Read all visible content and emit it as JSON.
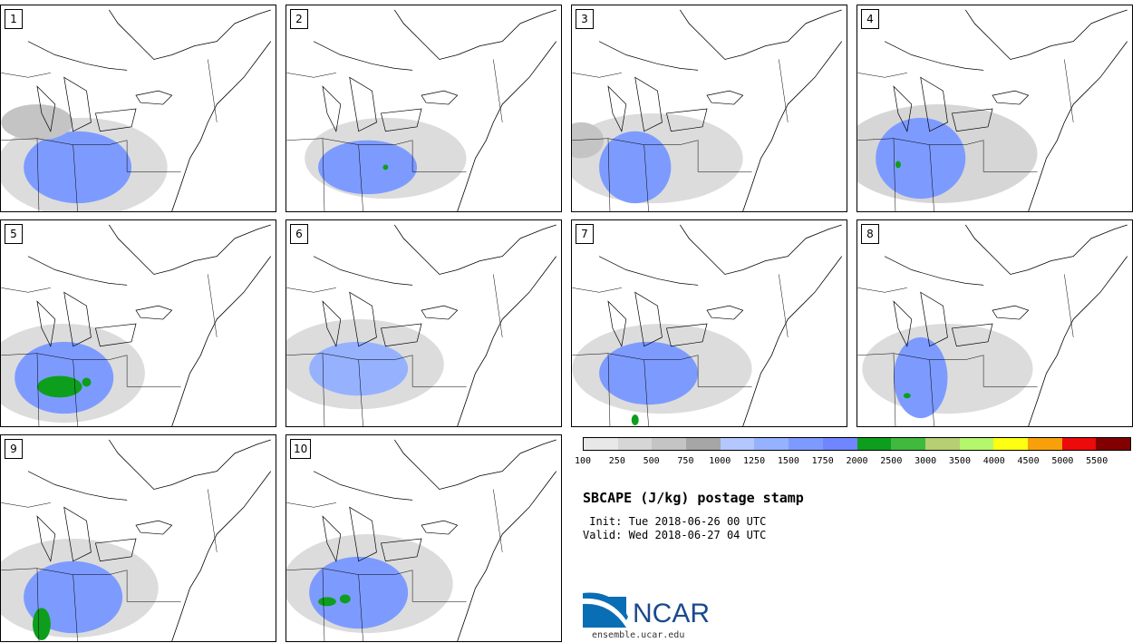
{
  "panels": [
    {
      "label": "1"
    },
    {
      "label": "2"
    },
    {
      "label": "3"
    },
    {
      "label": "4"
    },
    {
      "label": "5"
    },
    {
      "label": "6"
    },
    {
      "label": "7"
    },
    {
      "label": "8"
    },
    {
      "label": "9"
    },
    {
      "label": "10"
    }
  ],
  "legend": {
    "colors": [
      "#e8e8e8",
      "#d6d6d6",
      "#c4c4c4",
      "#a6a6a6",
      "#b4c8ff",
      "#96b2ff",
      "#7d9bff",
      "#6f86ff",
      "#0e9e1e",
      "#3fba3f",
      "#b6cf72",
      "#b4f66c",
      "#ffff14",
      "#f8a00a",
      "#ec0a0a",
      "#820000"
    ],
    "labels": [
      "100",
      "250",
      "500",
      "750",
      "1000",
      "1250",
      "1500",
      "1750",
      "2000",
      "2500",
      "3000",
      "3500",
      "4000",
      "4500",
      "5000",
      "5500"
    ]
  },
  "title": "SBCAPE (J/kg) postage stamp",
  "init": " Init: Tue 2018-06-26 00 UTC",
  "valid": "Valid: Wed 2018-06-27 04 UTC",
  "logo_text": "NCAR",
  "site": "ensemble.ucar.edu"
}
